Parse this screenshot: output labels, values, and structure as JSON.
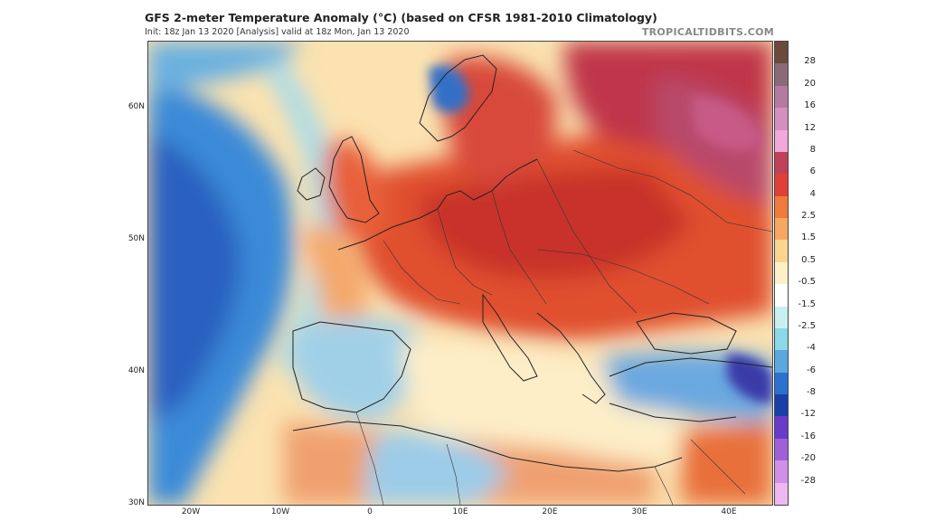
{
  "header": {
    "title": "GFS 2-meter Temperature Anomaly (°C) (based on CFSR 1981-2010 Climatology)",
    "subtitle": "Init: 18z Jan 13 2020   [Analysis]   valid at 18z Mon, Jan 13 2020",
    "brand": "TROPICALTIDBITS.COM"
  },
  "axes": {
    "lat_labels": [
      "60N",
      "50N",
      "40N",
      "30N"
    ],
    "lon_labels": [
      "20W",
      "10W",
      "0",
      "10E",
      "20E",
      "30E",
      "40E"
    ]
  },
  "colorbar": {
    "labels": [
      "28",
      "20",
      "16",
      "12",
      "8",
      "6",
      "4",
      "2.5",
      "1.5",
      "0.5",
      "-0.5",
      "-1.5",
      "-2.5",
      "-4",
      "-6",
      "-8",
      "-12",
      "-16",
      "-20",
      "-28"
    ],
    "colors": [
      "#6b4a3a",
      "#8a6a78",
      "#b47aa0",
      "#d48fc0",
      "#f2a8d8",
      "#c0405a",
      "#e04038",
      "#f07a3a",
      "#f6a860",
      "#fbd590",
      "#fdf0c8",
      "#ffffff",
      "#c8f0f0",
      "#8ad8e8",
      "#5aa8e0",
      "#2c70d0",
      "#1840a8",
      "#6a3ac8",
      "#a060d8",
      "#d090e8",
      "#f0b8f0"
    ]
  }
}
